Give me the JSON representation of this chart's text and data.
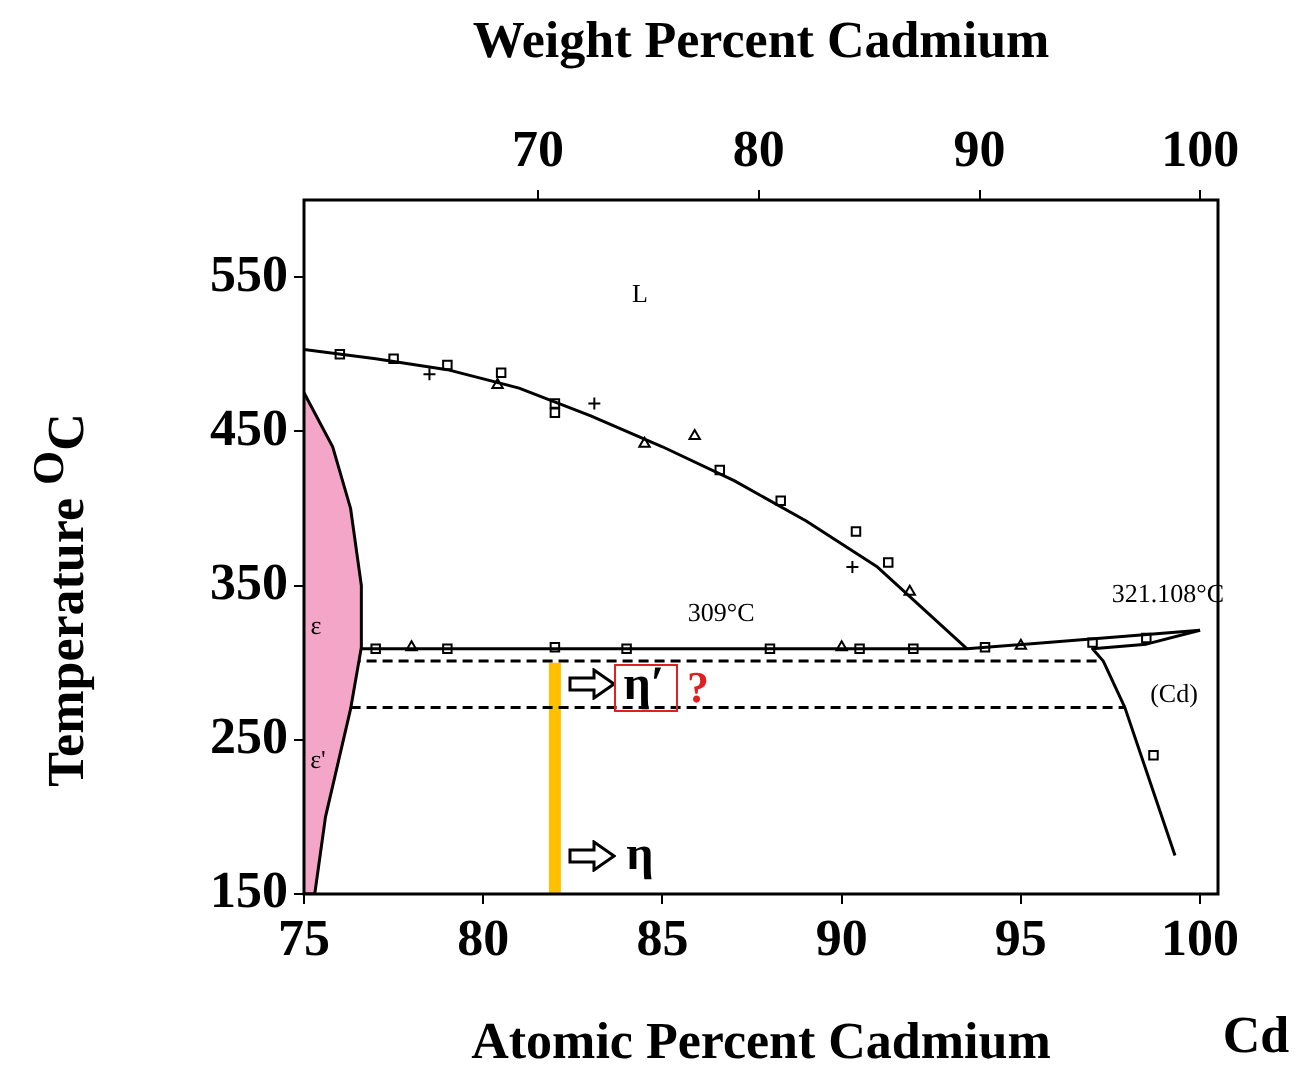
{
  "chart_data": {
    "type": "line",
    "xlabel": "Atomic Percent Cadmium",
    "x2label": "Weight Percent Cadmium",
    "ylabel": "Temperature $^{O}$C",
    "xlim": [
      75,
      100.5
    ],
    "xticks": [
      75,
      80,
      85,
      90,
      95,
      100
    ],
    "x2lim": [
      59.4,
      100.8
    ],
    "x2ticks": [
      70,
      80,
      90,
      100
    ],
    "ylim": [
      150,
      600
    ],
    "yticks": [
      150,
      250,
      350,
      450,
      550
    ],
    "grid": false,
    "legend": false,
    "series": [
      {
        "type": "area",
        "color": "#f4a6c8",
        "x": [
          75,
          75.8,
          76.3,
          76.6,
          76.6,
          76.3,
          76.0,
          75.6,
          75.3,
          75
        ],
        "values": [
          475,
          440,
          400,
          350,
          310,
          270,
          240,
          200,
          150,
          150
        ]
      },
      {
        "color": "#000000",
        "marker": "none",
        "line_style": "solid",
        "x": [
          75,
          77,
          79,
          81,
          83,
          85,
          87,
          89,
          91,
          93.5
        ],
        "values": [
          503,
          497,
          490,
          478,
          460,
          440,
          418,
          392,
          362,
          309
        ]
      },
      {
        "color": "#000000",
        "marker": "none",
        "line_style": "solid",
        "x": [
          76.5,
          93.5,
          100
        ],
        "values": [
          309,
          309,
          321
        ]
      },
      {
        "color": "#000000",
        "marker": "none",
        "line_style": "solid",
        "x": [
          100,
          98.5,
          97.0,
          97.3,
          97.9,
          99.3
        ],
        "values": [
          321,
          312,
          309,
          301,
          271,
          175
        ]
      },
      {
        "color": "#000000",
        "marker": "none",
        "line_style": "dashed",
        "x": [
          76.3,
          97.3
        ],
        "values": [
          301,
          301
        ]
      },
      {
        "color": "#000000",
        "marker": "none",
        "line_style": "dashed",
        "x": [
          76.3,
          97.9
        ],
        "values": [
          271,
          271
        ]
      },
      {
        "color": "#ffc000",
        "marker": "none",
        "line_style": "solid",
        "x": [
          82,
          82
        ],
        "values": [
          150,
          300
        ]
      },
      {
        "type": "scatter",
        "color": "#000000",
        "marker": "square",
        "x": [
          76,
          77.5,
          79,
          80.5,
          82,
          82,
          86.6,
          88.3,
          90.4,
          91.3,
          77,
          79,
          82,
          84,
          88,
          90.5,
          92,
          94,
          97,
          98.5,
          98.7
        ],
        "values": [
          500,
          497,
          493,
          488,
          468,
          462,
          425,
          405,
          385,
          365,
          309,
          309,
          310,
          309,
          309,
          309,
          309,
          310,
          313,
          316,
          240
        ]
      },
      {
        "type": "scatter",
        "color": "#000000",
        "marker": "triangle",
        "x": [
          80.4,
          84.5,
          85.9,
          91.9,
          78,
          90,
          95
        ],
        "values": [
          480,
          442,
          447,
          346,
          310,
          310,
          311
        ]
      },
      {
        "type": "scatter",
        "color": "#000000",
        "marker": "cross",
        "x": [
          78.5,
          83.1,
          90.3
        ],
        "values": [
          487,
          468,
          362
        ]
      }
    ],
    "annotations": [
      "L",
      "ε",
      "ε'",
      {
        "text": "309°C",
        "x": 86.9,
        "y": 309
      },
      {
        "text": "321.108°C",
        "x": 100,
        "y": 321
      },
      "(Cd)",
      "η′",
      "?",
      "η",
      "Cd"
    ]
  }
}
